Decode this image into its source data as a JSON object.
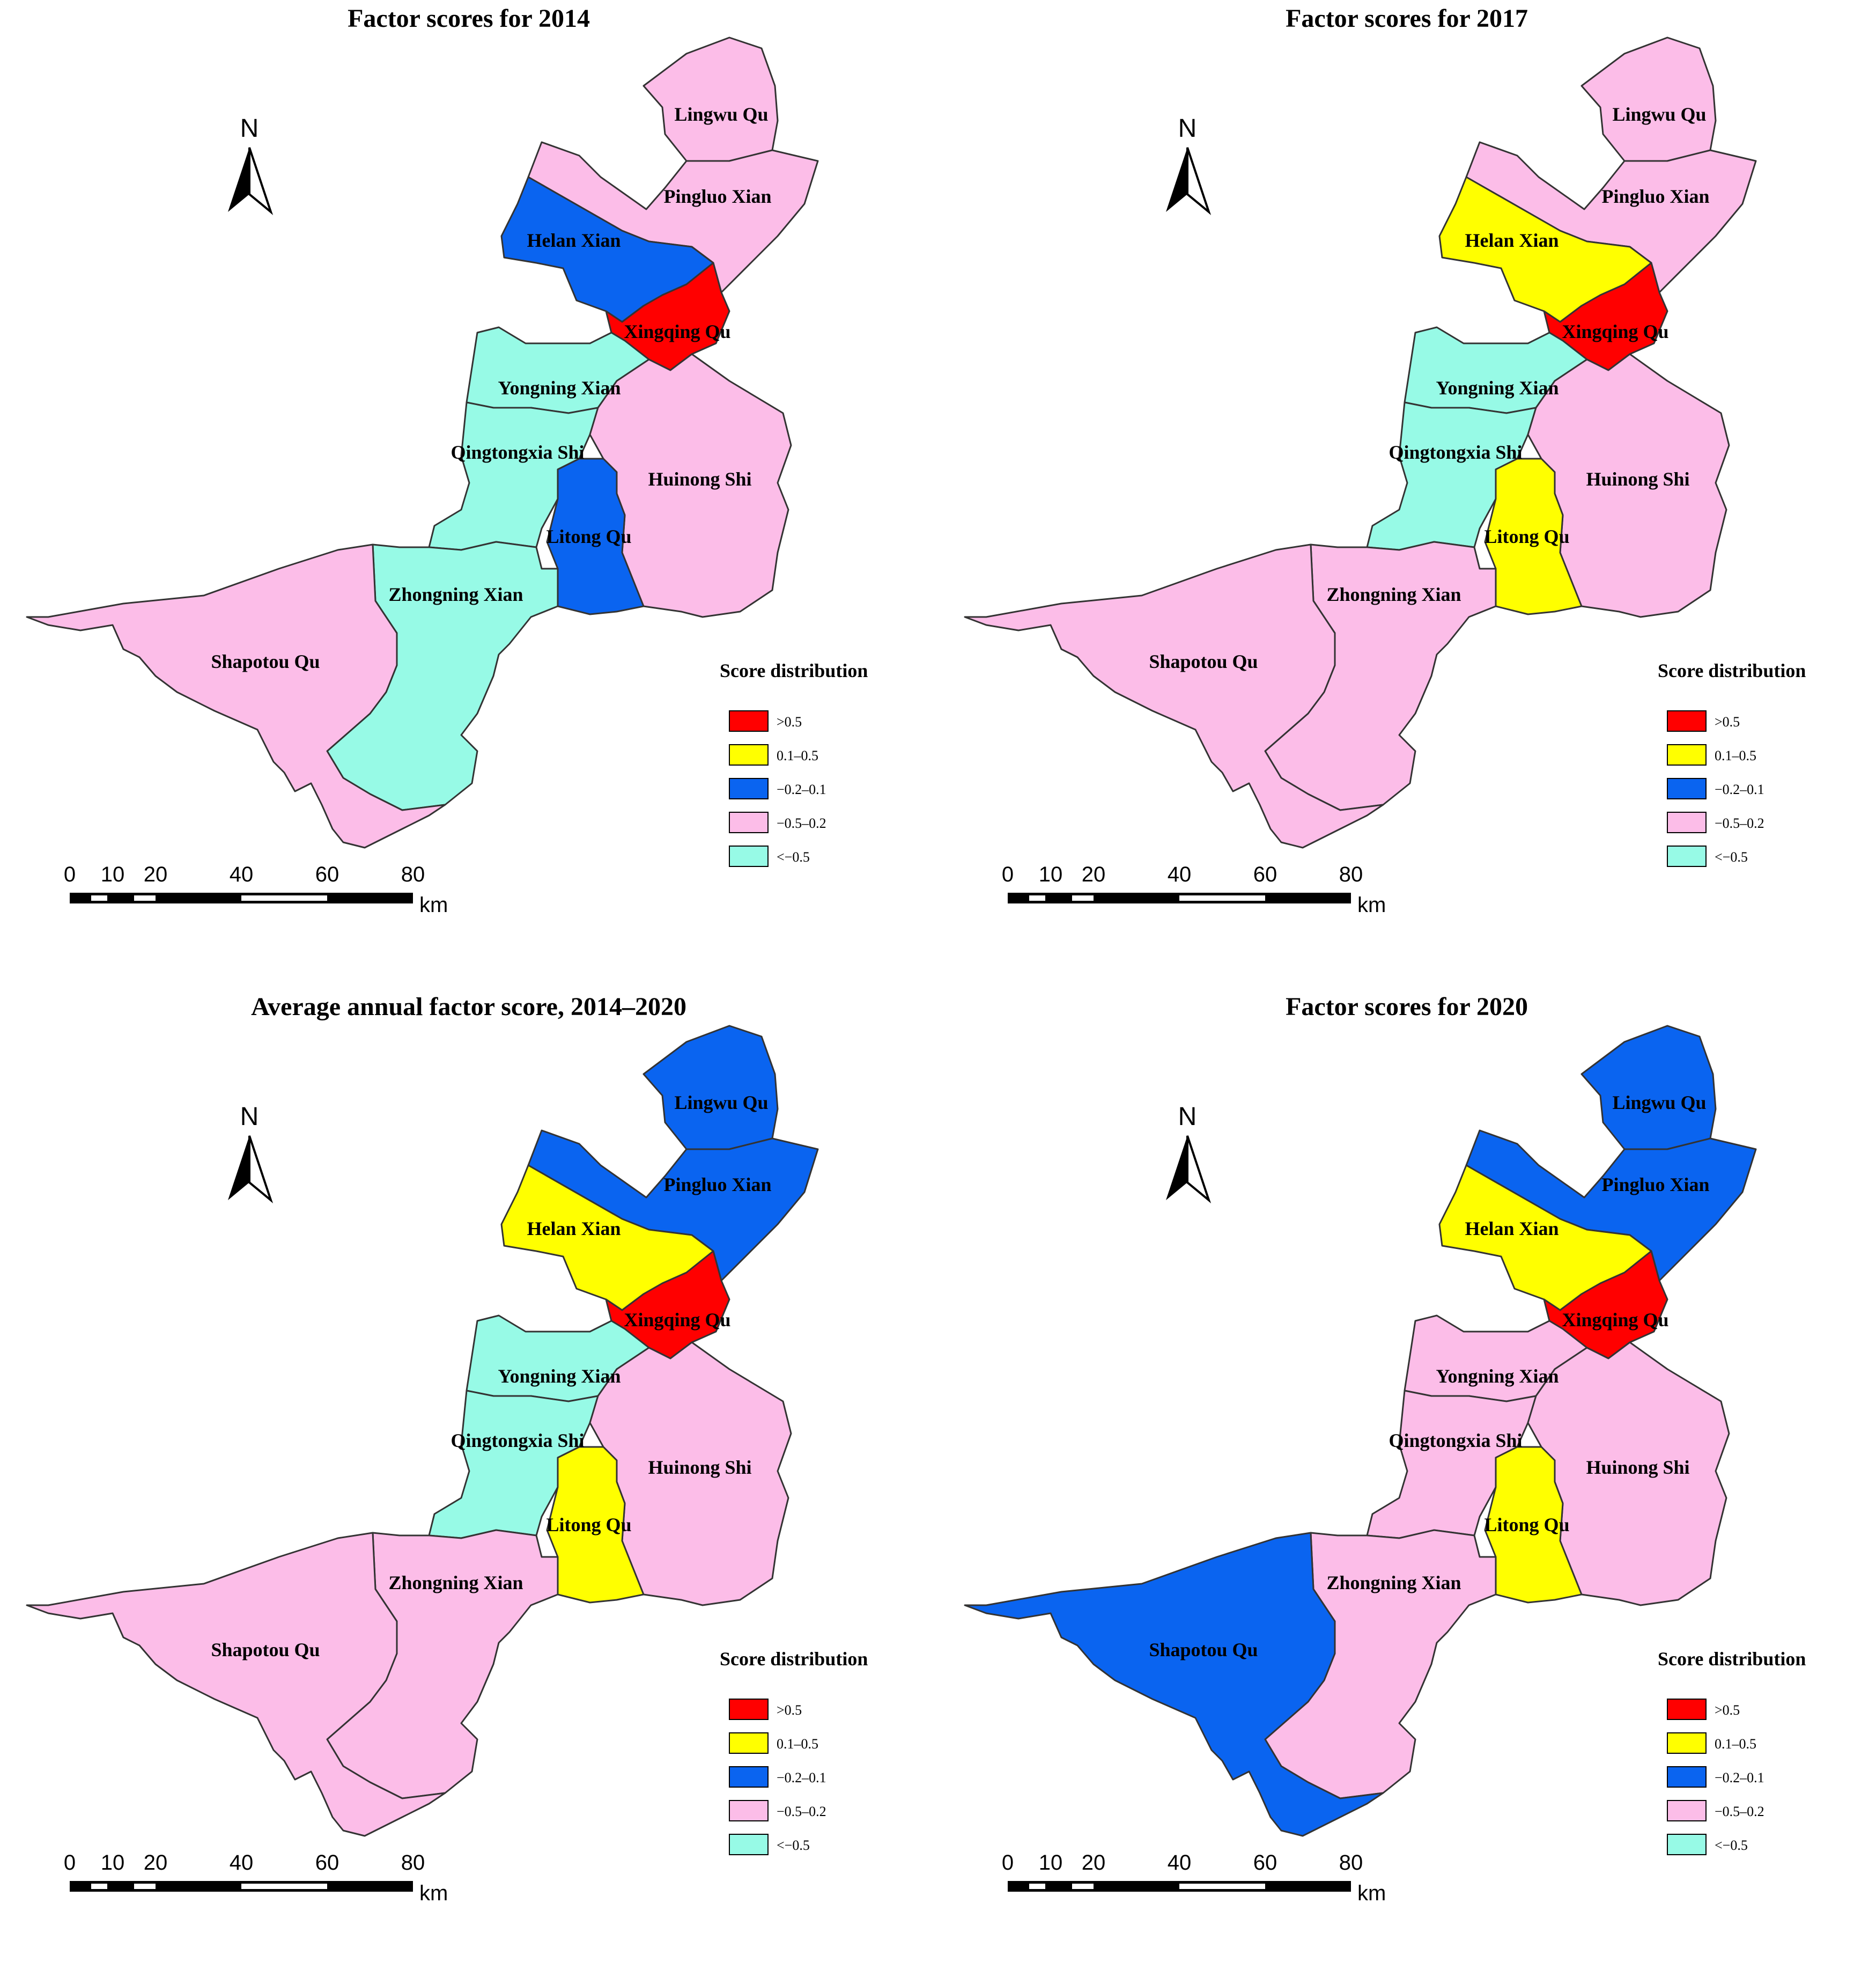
{
  "colors": {
    "gt_0_5": "#ff0000",
    "r_0_1_0_5": "#ffff00",
    "r_m0_2_0_1": "#0a64f0",
    "r_m0_5_0_2": "#fcbde8",
    "lt_m0_5": "#97fae6",
    "border": "#333333"
  },
  "legend": {
    "title": "Score distribution",
    "items": [
      {
        "key": "gt_0_5",
        "label": ">0.5"
      },
      {
        "key": "r_0_1_0_5",
        "label": "0.1–0.5"
      },
      {
        "key": "r_m0_2_0_1",
        "label": "−0.2–0.1"
      },
      {
        "key": "r_m0_5_0_2",
        "label": "−0.5–0.2"
      },
      {
        "key": "lt_m0_5",
        "label": "<−0.5"
      }
    ]
  },
  "north_arrow": {
    "label": "N",
    "icon": "north-arrow-icon"
  },
  "scale_bar": {
    "ticks": [
      "0",
      "10",
      "20",
      "40",
      "60",
      "80"
    ],
    "unit": "km"
  },
  "region_labels": {
    "lingwu": "Lingwu Qu",
    "pingluo": "Pingluo Xian",
    "helan": "Helan Xian",
    "xingqing": "Xingqing Qu",
    "yongning": "Yongning Xian",
    "qingtongxia": "Qingtongxia Shi",
    "huinong": "Huinong Shi",
    "litong": "Litong Qu",
    "zhongning": "Zhongning Xian",
    "shapotou": "Shapotou Qu"
  },
  "panels": [
    {
      "title": "Factor scores for 2014",
      "classes": {
        "lingwu": "r_m0_5_0_2",
        "pingluo": "r_m0_5_0_2",
        "helan": "r_m0_2_0_1",
        "xingqing": "gt_0_5",
        "yongning": "lt_m0_5",
        "qingtongxia": "lt_m0_5",
        "huinong": "r_m0_5_0_2",
        "litong": "r_m0_2_0_1",
        "zhongning": "lt_m0_5",
        "shapotou": "r_m0_5_0_2"
      }
    },
    {
      "title": "Factor scores for 2017",
      "classes": {
        "lingwu": "r_m0_5_0_2",
        "pingluo": "r_m0_5_0_2",
        "helan": "r_0_1_0_5",
        "xingqing": "gt_0_5",
        "yongning": "lt_m0_5",
        "qingtongxia": "lt_m0_5",
        "huinong": "r_m0_5_0_2",
        "litong": "r_0_1_0_5",
        "zhongning": "r_m0_5_0_2",
        "shapotou": "r_m0_5_0_2"
      }
    },
    {
      "title": "Average annual factor score, 2014–2020",
      "classes": {
        "lingwu": "r_m0_2_0_1",
        "pingluo": "r_m0_2_0_1",
        "helan": "r_0_1_0_5",
        "xingqing": "gt_0_5",
        "yongning": "lt_m0_5",
        "qingtongxia": "lt_m0_5",
        "huinong": "r_m0_5_0_2",
        "litong": "r_0_1_0_5",
        "zhongning": "r_m0_5_0_2",
        "shapotou": "r_m0_5_0_2"
      }
    },
    {
      "title": "Factor scores for 2020",
      "classes": {
        "lingwu": "r_m0_2_0_1",
        "pingluo": "r_m0_2_0_1",
        "helan": "r_0_1_0_5",
        "xingqing": "gt_0_5",
        "yongning": "r_m0_5_0_2",
        "qingtongxia": "r_m0_5_0_2",
        "huinong": "r_m0_5_0_2",
        "litong": "r_0_1_0_5",
        "zhongning": "r_m0_5_0_2",
        "shapotou": "r_m0_2_0_1"
      }
    }
  ]
}
